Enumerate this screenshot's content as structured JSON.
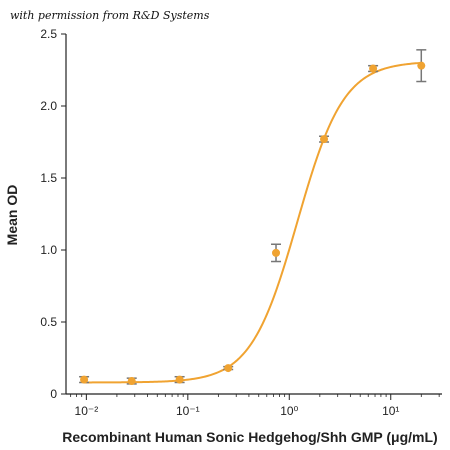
{
  "watermark": "with permission from R&D Systems",
  "chart_data": {
    "type": "scatter",
    "xlabel": "Recombinant Human Sonic Hedgehog/Shh GMP (μg/mL)",
    "ylabel": "Mean OD",
    "xscale": "log",
    "xlim": [
      0.0063,
      32
    ],
    "ylim": [
      0,
      2.5
    ],
    "x_ticks": [
      {
        "value": 0.01,
        "label": "10⁻²"
      },
      {
        "value": 0.1,
        "label": "10⁻¹"
      },
      {
        "value": 1,
        "label": "10⁰"
      },
      {
        "value": 10,
        "label": "10¹"
      }
    ],
    "y_ticks": [
      {
        "value": 0,
        "label": "0"
      },
      {
        "value": 0.5,
        "label": "0.5"
      },
      {
        "value": 1.0,
        "label": "1.0"
      },
      {
        "value": 1.5,
        "label": "1.5"
      },
      {
        "value": 2.0,
        "label": "2.0"
      },
      {
        "value": 2.5,
        "label": "2.5"
      }
    ],
    "points": [
      {
        "x": 0.0095,
        "y": 0.1,
        "err": 0.02
      },
      {
        "x": 0.028,
        "y": 0.09,
        "err": 0.02
      },
      {
        "x": 0.083,
        "y": 0.1,
        "err": 0.02
      },
      {
        "x": 0.25,
        "y": 0.18,
        "err": 0.01
      },
      {
        "x": 0.74,
        "y": 0.98,
        "err": 0.06
      },
      {
        "x": 2.2,
        "y": 1.77,
        "err": 0.02
      },
      {
        "x": 6.7,
        "y": 2.26,
        "err": 0.02
      },
      {
        "x": 20,
        "y": 2.28,
        "err": 0.11
      }
    ],
    "fit": {
      "bottom": 0.08,
      "top": 2.31,
      "ec50": 1.2,
      "hill": 1.9
    },
    "colors": {
      "curve": "#f0a331",
      "marker": "#f0a331",
      "errorbar": "#777777",
      "axis": "#222222"
    },
    "grid": false
  }
}
